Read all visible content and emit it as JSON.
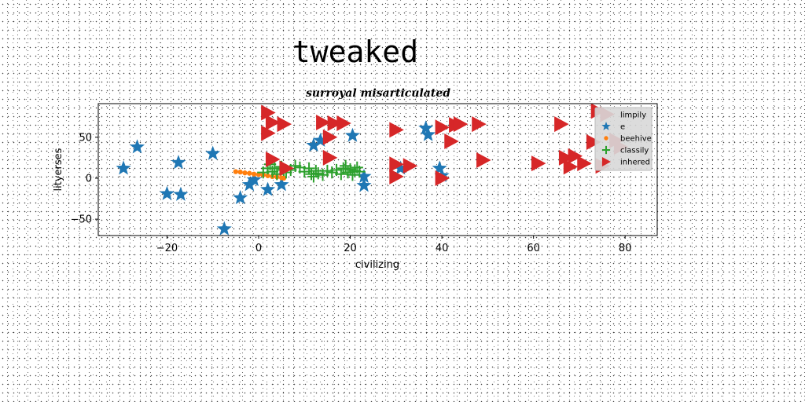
{
  "page_title": "tweaked",
  "chart_data": {
    "type": "scatter",
    "title": "surroyal misarticulated",
    "xlabel": "civilizing",
    "ylabel": "lityerses",
    "xlim": [
      -35,
      87
    ],
    "ylim": [
      -70,
      91
    ],
    "xticks": [
      -20,
      0,
      20,
      40,
      60,
      80
    ],
    "yticks": [
      -50,
      0,
      50
    ],
    "grid": false,
    "legend_position": "top-right",
    "series": [
      {
        "name": "limpily",
        "marker": "none",
        "color": "#000000",
        "points": []
      },
      {
        "name": "e",
        "marker": "star",
        "color": "#1f77b4",
        "points": [
          [
            -29.5,
            12
          ],
          [
            -26.5,
            38
          ],
          [
            -17.5,
            19
          ],
          [
            -20,
            -19
          ],
          [
            -17,
            -20
          ],
          [
            -10,
            30
          ],
          [
            -7.5,
            -62
          ],
          [
            -4,
            -24
          ],
          [
            -2,
            -8
          ],
          [
            -1,
            -2
          ],
          [
            2,
            -14
          ],
          [
            5,
            -8
          ],
          [
            12,
            40
          ],
          [
            13.5,
            46
          ],
          [
            20.5,
            52
          ],
          [
            23,
            2
          ],
          [
            23,
            -9
          ],
          [
            31,
            12
          ],
          [
            36.5,
            61
          ],
          [
            37,
            53
          ],
          [
            39.5,
            12
          ],
          [
            40,
            3
          ]
        ]
      },
      {
        "name": "beehive",
        "marker": "circle",
        "color": "#ff7f0e",
        "points": [
          [
            -5,
            8
          ],
          [
            -4,
            7.5
          ],
          [
            -3,
            6.5
          ],
          [
            -2,
            6
          ],
          [
            -1,
            5
          ],
          [
            0,
            4.5
          ],
          [
            1,
            4
          ],
          [
            2,
            3
          ],
          [
            3,
            2
          ],
          [
            4,
            1.5
          ],
          [
            5,
            0.5
          ],
          [
            5.5,
            0
          ]
        ]
      },
      {
        "name": "classily",
        "marker": "plus",
        "color": "#2ca02c",
        "points": [
          [
            1,
            7
          ],
          [
            2,
            12
          ],
          [
            2.5,
            17
          ],
          [
            3,
            8
          ],
          [
            3.5,
            12
          ],
          [
            4,
            5
          ],
          [
            5,
            14
          ],
          [
            5.5,
            10
          ],
          [
            6,
            7
          ],
          [
            7,
            10
          ],
          [
            8,
            15
          ],
          [
            9,
            13
          ],
          [
            10,
            8
          ],
          [
            11,
            12
          ],
          [
            11.5,
            5
          ],
          [
            12,
            2
          ],
          [
            12.5,
            9
          ],
          [
            13,
            6
          ],
          [
            14,
            4
          ],
          [
            15,
            9
          ],
          [
            16,
            7
          ],
          [
            17,
            10
          ],
          [
            18,
            5
          ],
          [
            18.5,
            12
          ],
          [
            19,
            15
          ],
          [
            19.5,
            7
          ],
          [
            20,
            11
          ],
          [
            20.5,
            4
          ],
          [
            21,
            9
          ],
          [
            21.5,
            13
          ],
          [
            22,
            8
          ]
        ]
      },
      {
        "name": "inhered",
        "marker": "triangle-right",
        "color": "#d62728",
        "points": [
          [
            2,
            80
          ],
          [
            2,
            55
          ],
          [
            3,
            68
          ],
          [
            5.5,
            66
          ],
          [
            3,
            23
          ],
          [
            6,
            12
          ],
          [
            14,
            68
          ],
          [
            15.5,
            25
          ],
          [
            16.5,
            67
          ],
          [
            15.5,
            50
          ],
          [
            18.5,
            67
          ],
          [
            30,
            59
          ],
          [
            30,
            17
          ],
          [
            30,
            2
          ],
          [
            33,
            15
          ],
          [
            40,
            62
          ],
          [
            42,
            45
          ],
          [
            43,
            65
          ],
          [
            44,
            66
          ],
          [
            49,
            22
          ],
          [
            61,
            18
          ],
          [
            67,
            25
          ],
          [
            68,
            14
          ],
          [
            69,
            27
          ],
          [
            71,
            18
          ],
          [
            73,
            44
          ],
          [
            74,
            82
          ],
          [
            76,
            78
          ],
          [
            75,
            15
          ],
          [
            78,
            46
          ],
          [
            79,
            38
          ],
          [
            40,
            0
          ],
          [
            48,
            66
          ],
          [
            66,
            66
          ]
        ]
      }
    ]
  }
}
